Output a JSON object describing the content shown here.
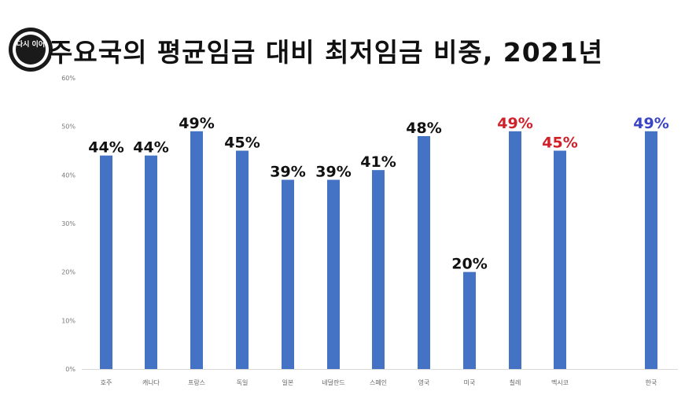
{
  "title": "주요국의 평균임금 대비 최저임금 비중, 2021년",
  "logo": {
    "text": "다시 이어"
  },
  "colors": {
    "bar": "#4472C4",
    "label_default": "#111111",
    "label_red": "#D0202A",
    "label_blue": "#3B44C4",
    "grid": "#D9D9D9"
  },
  "chart_data": {
    "type": "bar",
    "categories": [
      "호주",
      "캐나다",
      "프랑스",
      "독일",
      "일본",
      "네덜란드",
      "스페인",
      "영국",
      "미국",
      "칠레",
      "멕시코",
      "한국"
    ],
    "values": [
      44,
      44,
      49,
      45,
      39,
      39,
      41,
      48,
      20,
      49,
      45,
      49
    ],
    "data_labels": [
      "44%",
      "44%",
      "49%",
      "45%",
      "39%",
      "39%",
      "41%",
      "48%",
      "20%",
      "49%",
      "45%",
      "49%"
    ],
    "label_colors": [
      "default",
      "default",
      "default",
      "default",
      "default",
      "default",
      "default",
      "default",
      "default",
      "red",
      "red",
      "blue"
    ],
    "yticks": [
      0,
      10,
      20,
      30,
      40,
      50,
      60
    ],
    "ytick_labels": [
      "0%",
      "10%",
      "20%",
      "30%",
      "40%",
      "50%",
      "60%"
    ],
    "ylim": [
      0,
      60
    ],
    "grid": false
  }
}
